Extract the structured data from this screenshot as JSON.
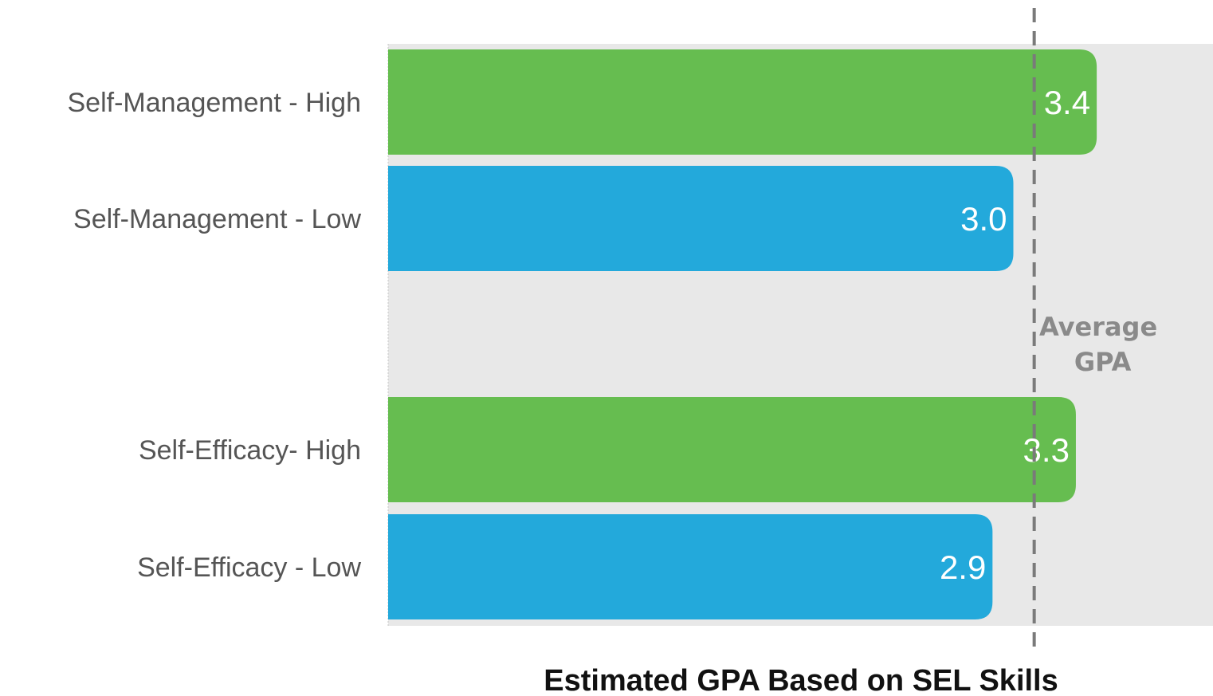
{
  "chart_data": {
    "type": "bar",
    "orientation": "horizontal",
    "title": "",
    "xlabel": "Estimated GPA Based on SEL Skills",
    "ylabel": "",
    "xlim": [
      0,
      4.0
    ],
    "grid": false,
    "legend": "none",
    "categories": [
      "Self-Management - High",
      "Self-Management - Low",
      "Self-Efficacy- High",
      "Self-Efficacy - Low"
    ],
    "values": [
      3.4,
      3.0,
      3.3,
      2.9
    ],
    "value_labels": [
      "3.4",
      "3.0",
      "3.3",
      "2.9"
    ],
    "bar_colors": [
      "#66bd50",
      "#23a9db",
      "#66bd50",
      "#23a9db"
    ],
    "reference_line": {
      "value": 3.1,
      "label_lines": [
        "Average",
        "GPA"
      ],
      "color": "#7a7a7a",
      "style": "dashed"
    },
    "plot_background": "#e8e8e8"
  }
}
